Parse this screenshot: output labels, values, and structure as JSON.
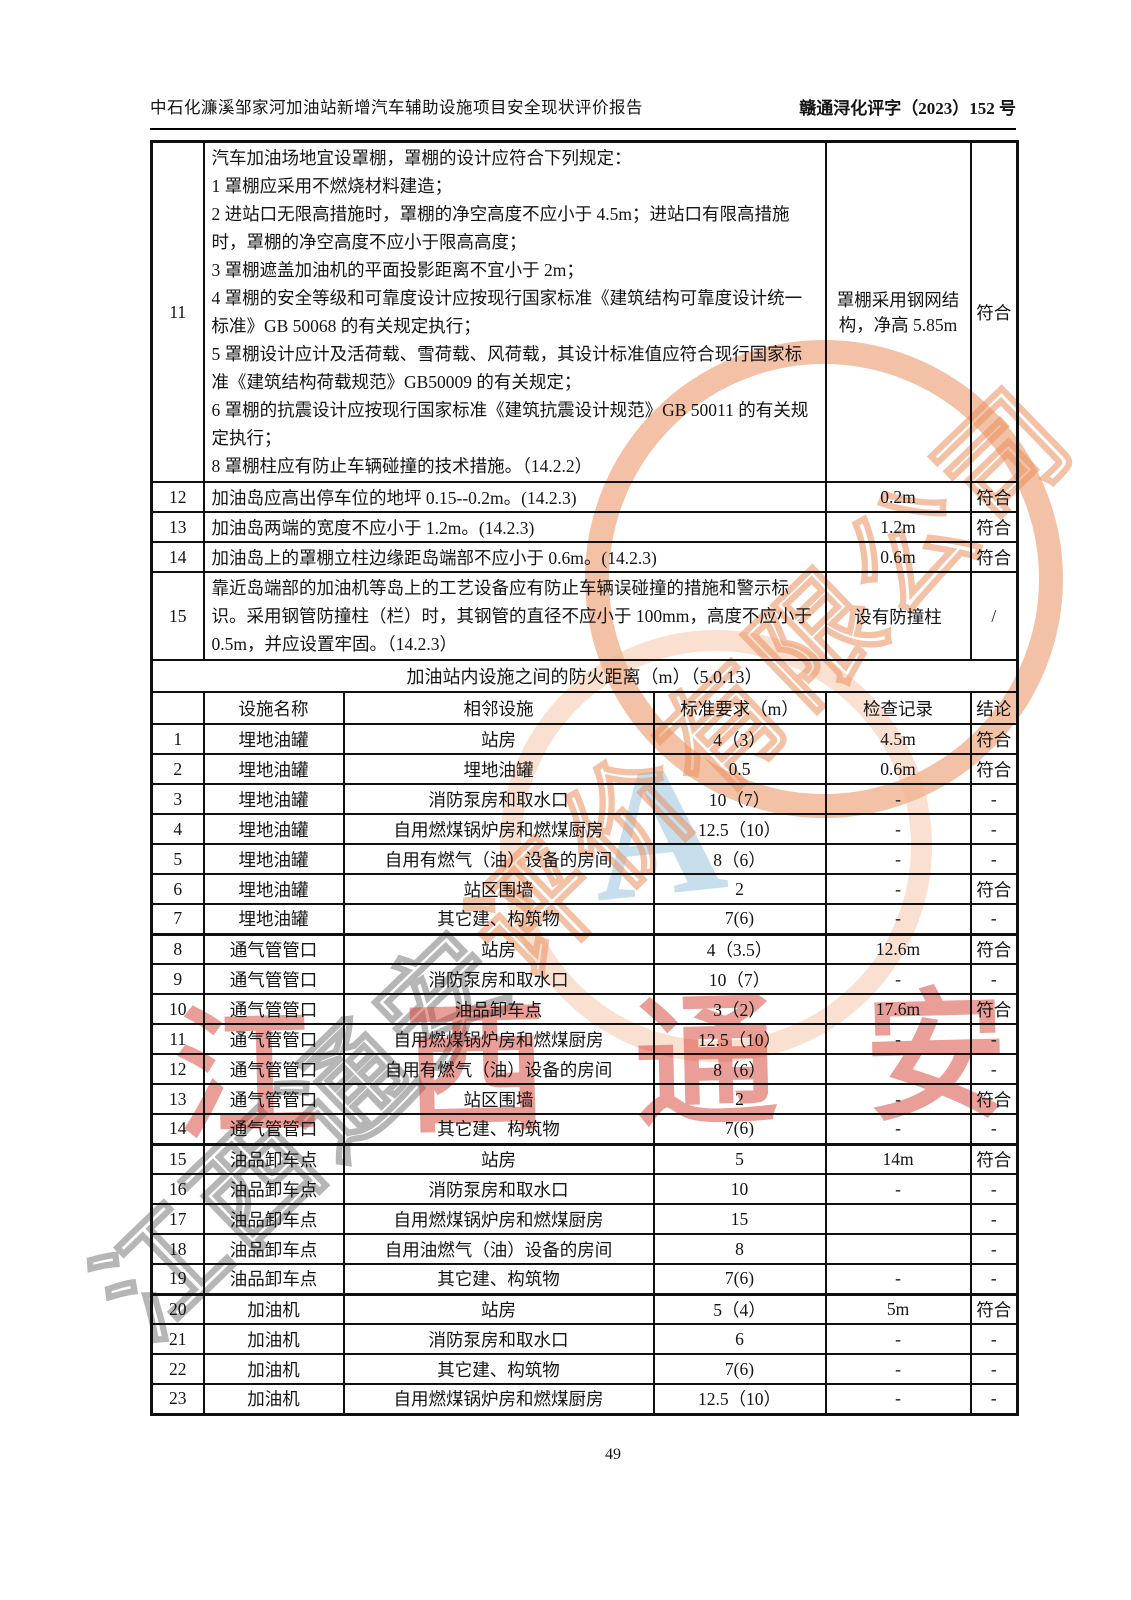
{
  "page": {
    "header_left": "中石化濂溪邹家河加油站新增汽车辅助设施项目安全现状评价报告",
    "header_right": "赣通浔化评字（2023）152 号",
    "page_number": "49"
  },
  "table1": {
    "rows": [
      {
        "no": "11",
        "item": "汽车加油场地宜设罩棚，罩棚的设计应符合下列规定：\n1 罩棚应采用不燃烧材料建造；\n2 进站口无限高措施时，罩棚的净空高度不应小于 4.5m；进站口有限高措施时，罩棚的净空高度不应小于限高高度；\n3 罩棚遮盖加油机的平面投影距离不宜小于 2m；\n4 罩棚的安全等级和可靠度设计应按现行国家标准《建筑结构可靠度设计统一标准》GB 50068 的有关规定执行；\n5 罩棚设计应计及活荷载、雪荷载、风荷载，其设计标准值应符合现行国家标准《建筑结构荷载规范》GB50009 的有关规定；\n6 罩棚的抗震设计应按现行国家标准《建筑抗震设计规范》GB 50011 的有关规定执行；\n8 罩棚柱应有防止车辆碰撞的技术措施。（14.2.2）",
        "record": "罩棚采用钢网结构，净高 5.85m",
        "conclusion": "符合"
      },
      {
        "no": "12",
        "item": "加油岛应高出停车位的地坪 0.15--0.2m。(14.2.3)",
        "record": "0.2m",
        "conclusion": "符合"
      },
      {
        "no": "13",
        "item": "加油岛两端的宽度不应小于 1.2m。(14.2.3)",
        "record": "1.2m",
        "conclusion": "符合"
      },
      {
        "no": "14",
        "item": "加油岛上的罩棚立柱边缘距岛端部不应小于 0.6m。(14.2.3)",
        "record": "0.6m",
        "conclusion": "符合"
      },
      {
        "no": "15",
        "item": "靠近岛端部的加油机等岛上的工艺设备应有防止车辆误碰撞的措施和警示标识。采用钢管防撞柱（栏）时，其钢管的直径不应小于 100mm，高度不应小于 0.5m，并应设置牢固。（14.2.3）",
        "record": "设有防撞柱",
        "conclusion": "/"
      }
    ]
  },
  "section_title": "加油站内设施之间的防火距离（m）（5.0.13）",
  "table2": {
    "headers": [
      "",
      "设施名称",
      "相邻设施",
      "标准要求（m）",
      "检查记录",
      "结论"
    ],
    "rows": [
      [
        "1",
        "埋地油罐",
        "站房",
        "4（3）",
        "4.5m",
        "符合"
      ],
      [
        "2",
        "埋地油罐",
        "埋地油罐",
        "0.5",
        "0.6m",
        "符合"
      ],
      [
        "3",
        "埋地油罐",
        "消防泵房和取水口",
        "10（7）",
        "-",
        "-"
      ],
      [
        "4",
        "埋地油罐",
        "自用燃煤锅炉房和燃煤厨房",
        "12.5（10）",
        "-",
        "-"
      ],
      [
        "5",
        "埋地油罐",
        "自用有燃气（油）设备的房间",
        "8（6）",
        "-",
        "-"
      ],
      [
        "6",
        "埋地油罐",
        "站区围墙",
        "2",
        "-",
        "符合"
      ],
      [
        "7",
        "埋地油罐",
        "其它建、构筑物",
        "7(6)",
        "-",
        "-"
      ],
      [
        "8",
        "通气管管口",
        "站房",
        "4（3.5）",
        "12.6m",
        "符合"
      ],
      [
        "9",
        "通气管管口",
        "消防泵房和取水口",
        "10（7）",
        "-",
        "-"
      ],
      [
        "10",
        "通气管管口",
        "油品卸车点",
        "3（2）",
        "17.6m",
        "符合"
      ],
      [
        "11",
        "通气管管口",
        "自用燃煤锅炉房和燃煤厨房",
        "12.5（10）",
        "-",
        "-"
      ],
      [
        "12",
        "通气管管口",
        "自用有燃气（油）设备的房间",
        "8（6）",
        "",
        "-"
      ],
      [
        "13",
        "通气管管口",
        "站区围墙",
        "2",
        "-",
        "符合"
      ],
      [
        "14",
        "通气管管口",
        "其它建、构筑物",
        "7(6)",
        "-",
        "-"
      ],
      [
        "15",
        "油品卸车点",
        "站房",
        "5",
        "14m",
        "符合"
      ],
      [
        "16",
        "油品卸车点",
        "消防泵房和取水口",
        "10",
        "-",
        "-"
      ],
      [
        "17",
        "油品卸车点",
        "自用燃煤锅炉房和燃煤厨房",
        "15",
        "",
        "-"
      ],
      [
        "18",
        "油品卸车点",
        "自用油燃气（油）设备的房间",
        "8",
        "",
        "-"
      ],
      [
        "19",
        "油品卸车点",
        "其它建、构筑物",
        "7(6)",
        "-",
        "-"
      ],
      [
        "20",
        "加油机",
        "站房",
        "5（4）",
        "5m",
        "符合"
      ],
      [
        "21",
        "加油机",
        "消防泵房和取水口",
        "6",
        "-",
        "-"
      ],
      [
        "22",
        "加油机",
        "其它建、构筑物",
        "7(6)",
        "-",
        "-"
      ],
      [
        "23",
        "加油机",
        "自用燃煤锅炉房和燃煤厨房",
        "12.5（10）",
        "-",
        "-"
      ]
    ]
  },
  "watermark": {
    "red_text": "江西通安",
    "diagonal_left": "江西通安",
    "diagonal_right": "评价有限公司",
    "logo_letter": "A",
    "colors": {
      "red": "#d63e32",
      "orange": "#e98f5c",
      "blue": "#82b9d7"
    }
  }
}
